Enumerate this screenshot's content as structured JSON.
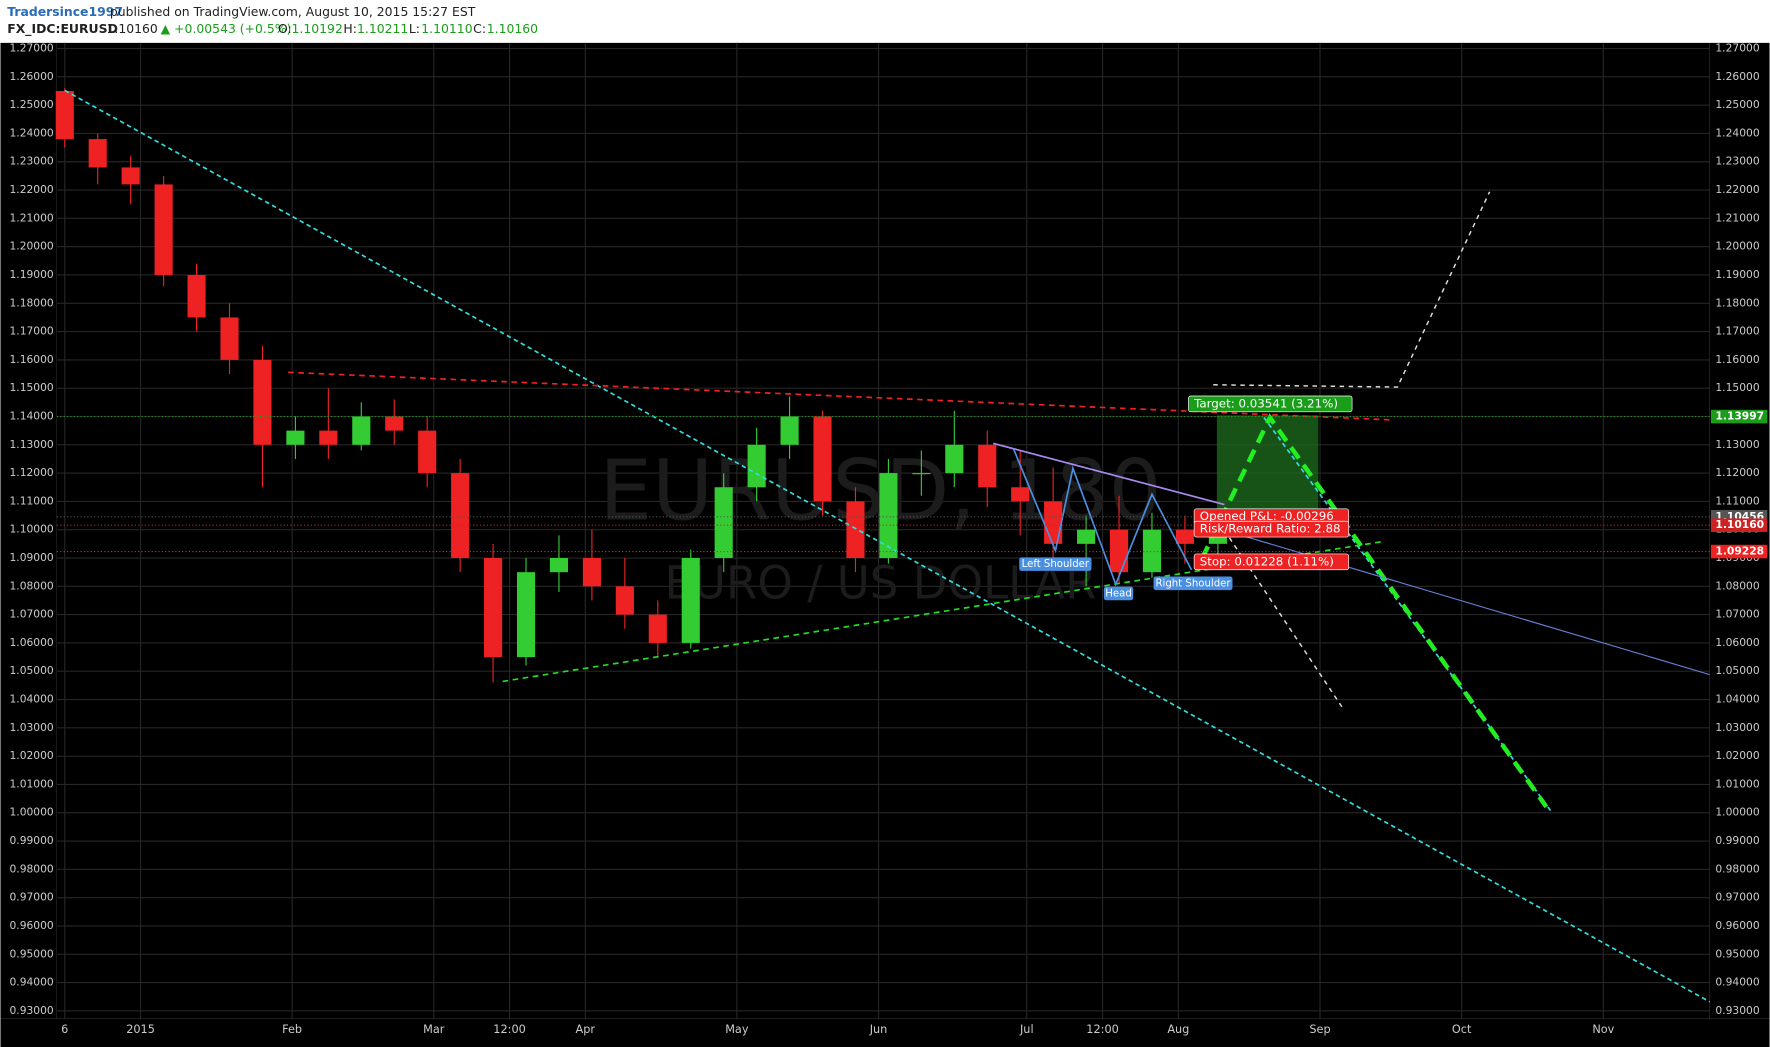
{
  "header": {
    "author": "Tradersince1997",
    "published": "published on TradingView.com, August 10, 2015 15:27 EST",
    "symbol": "FX_IDC:EURUSD",
    "last": "1.10160",
    "change": "▲ +0.00543 (+0.5%)",
    "open_label": "O:",
    "open": "1.10192",
    "high_label": "H:",
    "high": "1.10211",
    "low_label": "L:",
    "low": "1.10110",
    "close_label": "C:",
    "close": "1.10160"
  },
  "chart_data": {
    "type": "candlestick",
    "watermark": "EURUSD, 180",
    "watermark_sub": "EURO / US DOLLAR",
    "x": [
      0,
      1,
      2,
      3,
      4,
      5,
      6,
      7,
      8,
      9,
      10,
      11,
      12,
      13,
      14,
      15,
      16,
      17,
      18,
      19,
      20,
      21,
      22,
      23,
      24,
      25,
      26,
      27,
      28,
      29,
      30,
      31,
      32,
      33,
      34,
      35
    ],
    "open": [
      1.255,
      1.238,
      1.228,
      1.222,
      1.19,
      1.175,
      1.16,
      1.13,
      1.135,
      1.13,
      1.14,
      1.135,
      1.12,
      1.09,
      1.055,
      1.085,
      1.09,
      1.08,
      1.07,
      1.06,
      1.09,
      1.115,
      1.13,
      1.14,
      1.11,
      1.09,
      1.12,
      1.12,
      1.13,
      1.115,
      1.11,
      1.095,
      1.1,
      1.085,
      1.1,
      1.095
    ],
    "high": [
      1.256,
      1.24,
      1.232,
      1.225,
      1.194,
      1.18,
      1.165,
      1.14,
      1.15,
      1.145,
      1.146,
      1.14,
      1.125,
      1.095,
      1.09,
      1.098,
      1.1,
      1.09,
      1.075,
      1.093,
      1.12,
      1.136,
      1.147,
      1.142,
      1.115,
      1.125,
      1.128,
      1.142,
      1.135,
      1.128,
      1.122,
      1.105,
      1.112,
      1.106,
      1.105,
      1.104
    ],
    "low": [
      1.235,
      1.222,
      1.215,
      1.186,
      1.17,
      1.155,
      1.115,
      1.125,
      1.125,
      1.128,
      1.13,
      1.115,
      1.085,
      1.046,
      1.052,
      1.078,
      1.075,
      1.065,
      1.055,
      1.058,
      1.085,
      1.11,
      1.125,
      1.105,
      1.085,
      1.088,
      1.112,
      1.115,
      1.108,
      1.098,
      1.09,
      1.08,
      1.081,
      1.083,
      1.088,
      1.09
    ],
    "close": [
      1.238,
      1.228,
      1.222,
      1.19,
      1.175,
      1.16,
      1.13,
      1.135,
      1.13,
      1.14,
      1.135,
      1.12,
      1.09,
      1.055,
      1.085,
      1.09,
      1.08,
      1.07,
      1.06,
      1.09,
      1.115,
      1.13,
      1.14,
      1.11,
      1.09,
      1.12,
      1.12,
      1.13,
      1.115,
      1.11,
      1.095,
      1.1,
      1.085,
      1.1,
      1.095,
      1.1016
    ],
    "up_color": "#33cc33",
    "down_color": "#ee2222",
    "xlim": [
      -0.24,
      49.93
    ],
    "xticks": [
      {
        "value": 0,
        "label": "6"
      },
      {
        "value": 2.3,
        "label": "2015"
      },
      {
        "value": 6.9,
        "label": "Feb"
      },
      {
        "value": 11.2,
        "label": "Mar"
      },
      {
        "value": 13.5,
        "label": "12:00"
      },
      {
        "value": 15.8,
        "label": "Apr"
      },
      {
        "value": 20.4,
        "label": "May"
      },
      {
        "value": 24.7,
        "label": "Jun"
      },
      {
        "value": 29.2,
        "label": "Jul"
      },
      {
        "value": 31.5,
        "label": "12:00"
      },
      {
        "value": 33.8,
        "label": "Aug"
      },
      {
        "value": 38.1,
        "label": "Sep"
      },
      {
        "value": 42.4,
        "label": "Oct"
      },
      {
        "value": 46.7,
        "label": "Nov"
      }
    ],
    "ylim": [
      0.9272,
      1.272
    ],
    "yticks": [
      {
        "value": 0.93,
        "label": "0.93000"
      },
      {
        "value": 0.94,
        "label": "0.94000"
      },
      {
        "value": 0.95,
        "label": "0.95000"
      },
      {
        "value": 0.96,
        "label": "0.96000"
      },
      {
        "value": 0.97,
        "label": "0.97000"
      },
      {
        "value": 0.98,
        "label": "0.98000"
      },
      {
        "value": 0.99,
        "label": "0.99000"
      },
      {
        "value": 1,
        "label": "1.00000"
      },
      {
        "value": 1.01,
        "label": "1.01000"
      },
      {
        "value": 1.02,
        "label": "1.02000"
      },
      {
        "value": 1.03,
        "label": "1.03000"
      },
      {
        "value": 1.04,
        "label": "1.04000"
      },
      {
        "value": 1.05,
        "label": "1.05000"
      },
      {
        "value": 1.06,
        "label": "1.06000"
      },
      {
        "value": 1.07,
        "label": "1.07000"
      },
      {
        "value": 1.08,
        "label": "1.08000"
      },
      {
        "value": 1.09,
        "label": "1.09000"
      },
      {
        "value": 1.1,
        "label": "1.10000"
      },
      {
        "value": 1.11,
        "label": "1.11000"
      },
      {
        "value": 1.12,
        "label": "1.12000"
      },
      {
        "value": 1.13,
        "label": "1.13000"
      },
      {
        "value": 1.14,
        "label": "1.14000"
      },
      {
        "value": 1.15,
        "label": "1.15000"
      },
      {
        "value": 1.16,
        "label": "1.16000"
      },
      {
        "value": 1.17,
        "label": "1.17000"
      },
      {
        "value": 1.18,
        "label": "1.18000"
      },
      {
        "value": 1.19,
        "label": "1.19000"
      },
      {
        "value": 1.2,
        "label": "1.20000"
      },
      {
        "value": 1.21,
        "label": "1.21000"
      },
      {
        "value": 1.22,
        "label": "1.22000"
      },
      {
        "value": 1.23,
        "label": "1.23000"
      },
      {
        "value": 1.24,
        "label": "1.24000"
      },
      {
        "value": 1.25,
        "label": "1.25000"
      },
      {
        "value": 1.26,
        "label": "1.26000"
      },
      {
        "value": 1.27,
        "label": "1.27000"
      }
    ],
    "grid": true,
    "price_labels": [
      {
        "value": 1.13997,
        "label": "1.13997",
        "color": "#1a9e1a"
      },
      {
        "value": 1.10456,
        "label": "1.10456",
        "color": "#555555"
      },
      {
        "value": 1.1016,
        "label": "1.10160",
        "color": "#cc2222"
      },
      {
        "value": 1.09228,
        "label": "1.09228",
        "color": "#ee2222"
      }
    ],
    "drawings": [
      {
        "color": "#33dddd",
        "width": 1.5,
        "dash": "4 3",
        "x": [
          0,
          49.93
        ],
        "y": [
          1.2552,
          0.9332
        ]
      },
      {
        "color": "#33dddd",
        "width": 1.5,
        "dash": "4 3",
        "x": [
          36.4,
          45.14
        ],
        "y": [
          1.1396,
          1.0001
        ]
      },
      {
        "color": "#ee2222",
        "width": 1.5,
        "dash": "5 4",
        "x": [
          6.78,
          40.24
        ],
        "y": [
          1.1556,
          1.1388
        ]
      },
      {
        "color": "#22dd22",
        "width": 1.5,
        "dash": "5 4",
        "x": [
          13.29,
          40
        ],
        "y": [
          1.0464,
          1.0958
        ]
      },
      {
        "color": "#dddddd",
        "width": 1.3,
        "dash": "4 4",
        "x": [
          35.2,
          38.8
        ],
        "y": [
          1.0998,
          1.0368
        ]
      },
      {
        "color": "#dddddd",
        "width": 1.3,
        "dash": "4 4",
        "x": [
          34.86,
          40.45,
          43.25
        ],
        "y": [
          1.1512,
          1.1504,
          1.2194
        ]
      },
      {
        "color": "#22ee22",
        "width": 4,
        "dash": "12 7",
        "x": [
          34.52,
          36.58,
          44.97
        ],
        "y": [
          1.0898,
          1.1396,
          1.0021
        ]
      },
      {
        "color": "#6a7fd8",
        "width": 1,
        "dash": "none",
        "x": [
          35.2,
          49.93
        ],
        "y": [
          1.0998,
          1.0488
        ]
      },
      {
        "color": "#aa88ee",
        "width": 1.5,
        "dash": "none",
        "x": [
          28.18,
          35.2
        ],
        "y": [
          1.1305,
          1.1089
        ]
      },
      {
        "color": "#4a8fe0",
        "width": 1.5,
        "dash": "none",
        "x": [
          28.8,
          30.07,
          30.6,
          31.9,
          33,
          34.2
        ],
        "y": [
          1.1285,
          1.0926,
          1.1217,
          1.0807,
          1.1125,
          1.0858
        ]
      }
    ],
    "target_zone": {
      "x": [
        34.97,
        38.05
      ],
      "y": [
        1.1404,
        1.1018
      ],
      "color": "#1f6e1f"
    },
    "annotations": {
      "target": "Target: 0.03541 (3.21%)",
      "pnl": "Opened P&L: -0.00296",
      "rr": "Risk/Reward Ratio: 2.88",
      "stop": "Stop: 0.01228 (1.11%)",
      "left_shoulder": "Left Shoulder",
      "head": "Head",
      "right_shoulder": "Right Shoulder"
    }
  }
}
